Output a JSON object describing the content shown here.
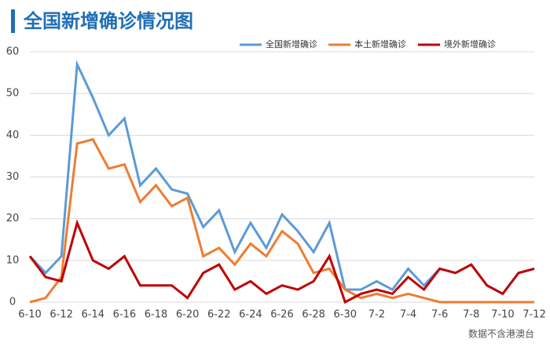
{
  "chart_data": {
    "type": "line",
    "title": "全国新增确诊情况图",
    "note": "数据不含港澳台",
    "categories": [
      "6-10",
      null,
      "6-12",
      null,
      "6-14",
      null,
      "6-16",
      null,
      "6-18",
      null,
      "6-20",
      null,
      "6-22",
      null,
      "6-24",
      null,
      "6-26",
      null,
      "6-28",
      null,
      "6-30",
      null,
      "7-2",
      null,
      "7-4",
      null,
      "7-6",
      null,
      "7-8",
      null,
      "7-10",
      null,
      "7-12"
    ],
    "series": [
      {
        "name": "全国新增确诊",
        "color": "#5b9bd5",
        "values": [
          11,
          7,
          11,
          57,
          49,
          40,
          44,
          28,
          32,
          27,
          26,
          18,
          22,
          12,
          19,
          13,
          21,
          17,
          12,
          19,
          3,
          3,
          5,
          3,
          8,
          4,
          8,
          7,
          9,
          4,
          2,
          7,
          8
        ]
      },
      {
        "name": "本土新增确诊",
        "color": "#ed7d31",
        "values": [
          0,
          1,
          6,
          38,
          39,
          32,
          33,
          24,
          28,
          23,
          25,
          11,
          13,
          9,
          14,
          11,
          17,
          14,
          7,
          8,
          3,
          1,
          2,
          1,
          2,
          1,
          0,
          0,
          0,
          0,
          0,
          0,
          0
        ]
      },
      {
        "name": "境外新增确诊",
        "color": "#c00000",
        "values": [
          11,
          6,
          5,
          19,
          10,
          8,
          11,
          4,
          4,
          4,
          1,
          7,
          9,
          3,
          5,
          2,
          4,
          3,
          5,
          11,
          0,
          2,
          3,
          2,
          6,
          3,
          8,
          7,
          9,
          4,
          2,
          7,
          8
        ]
      }
    ],
    "ylim": [
      0,
      60
    ],
    "yticks": [
      0,
      10,
      20,
      30,
      40,
      50,
      60
    ],
    "grid": true
  }
}
